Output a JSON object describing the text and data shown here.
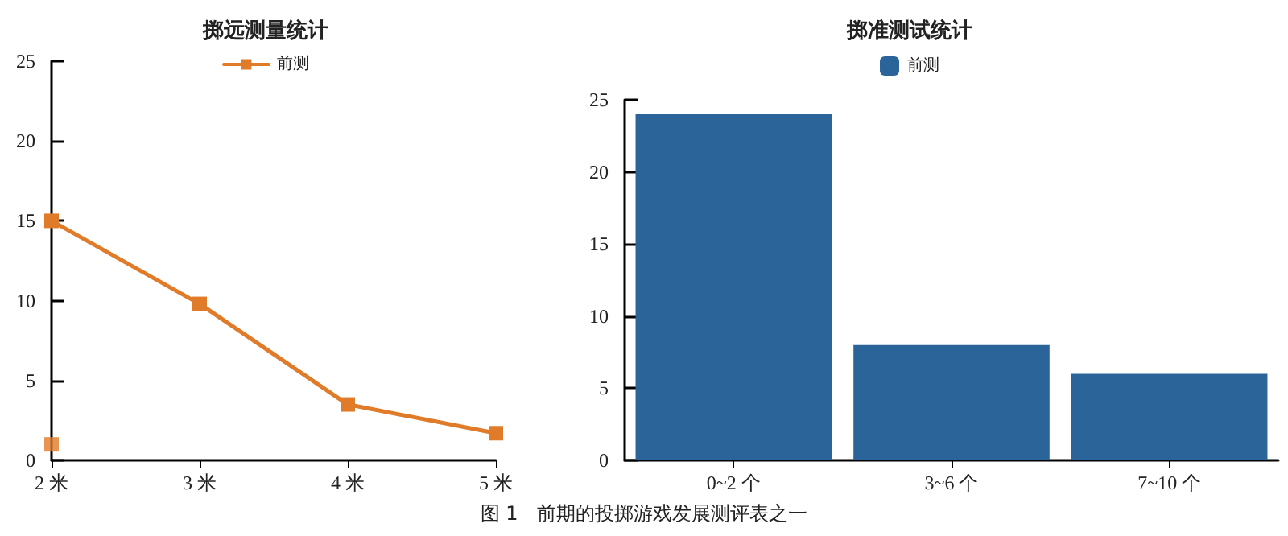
{
  "chart_data": [
    {
      "type": "line",
      "title": "掷远测量统计",
      "categories": [
        "2 米",
        "3 米",
        "4 米",
        "5 米"
      ],
      "series": [
        {
          "name": "前测",
          "color": "#e07b2a",
          "values": [
            15,
            9.8,
            3.5,
            1.7
          ]
        },
        {
          "type": "scatter",
          "color": "#e07b2a",
          "x": [
            "2 米"
          ],
          "values": [
            1
          ]
        }
      ],
      "ylim": [
        0,
        25
      ],
      "yticks": [
        0,
        5,
        10,
        15,
        20,
        25
      ],
      "legend": "top",
      "marker": "square",
      "grid": false
    },
    {
      "type": "bar",
      "title": "掷准测试统计",
      "categories": [
        "0~2 个",
        "3~6 个",
        "7~10 个"
      ],
      "series": [
        {
          "name": "前测",
          "color": "#2a6499",
          "values": [
            24,
            8,
            6
          ]
        }
      ],
      "ylim": [
        0,
        25
      ],
      "yticks": [
        0,
        5,
        10,
        15,
        20,
        25
      ],
      "legend": "top",
      "grid": false,
      "annotations": [
        "图 1　前期的投掷游戏发展测评表之一"
      ]
    }
  ]
}
